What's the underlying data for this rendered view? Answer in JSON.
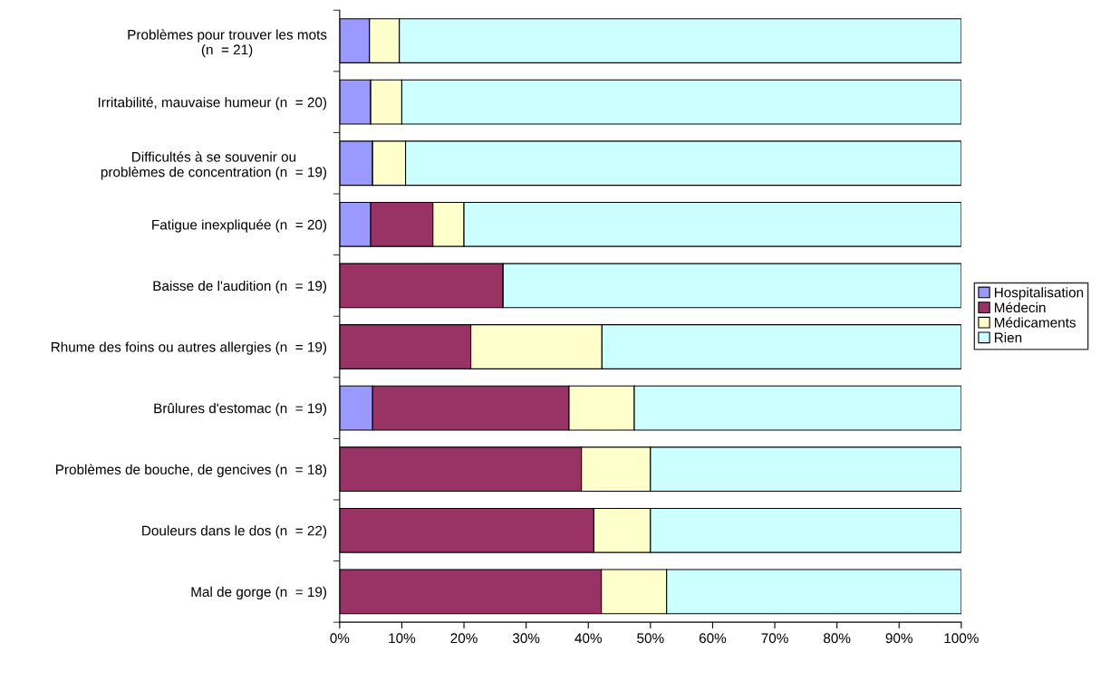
{
  "chart_data": {
    "type": "bar",
    "orientation": "horizontal",
    "stacked": true,
    "categories": [
      "Problèmes pour trouver les mots\n(n  = 21)",
      "Irritabilité, mauvaise humeur (n  = 20)",
      "Difficultés à se souvenir ou\nproblèmes de concentration (n  = 19)",
      "Fatigue inexpliquée (n  = 20)",
      "Baisse de l'audition (n  = 19)",
      "Rhume des foins ou autres allergies (n  = 19)",
      "Brûlures d'estomac (n  = 19)",
      "Problèmes de bouche, de gencives (n  = 18)",
      "Douleurs dans le dos (n  = 22)",
      "Mal de gorge (n  = 19)"
    ],
    "series": [
      {
        "name": "Hospitalisation",
        "color": "#9999ff",
        "values": [
          4.8,
          5,
          5.3,
          5,
          0,
          0,
          5.3,
          0,
          0,
          0
        ]
      },
      {
        "name": "Médecin",
        "color": "#993366",
        "values": [
          0,
          0,
          0,
          10,
          26.3,
          21.1,
          31.6,
          38.9,
          40.9,
          42.1
        ]
      },
      {
        "name": "Médicaments",
        "color": "#ffffcc",
        "values": [
          4.8,
          5,
          5.3,
          5,
          0,
          21.1,
          10.5,
          11.1,
          9.1,
          10.5
        ]
      },
      {
        "name": "Rien",
        "color": "#ccffff",
        "values": [
          90.4,
          90,
          89.4,
          80,
          73.7,
          57.8,
          52.6,
          50,
          50,
          47.4
        ]
      }
    ],
    "xlim": [
      0,
      100
    ],
    "xticks": [
      {
        "value": 0,
        "label": "0%"
      },
      {
        "value": 10,
        "label": "10%"
      },
      {
        "value": 20,
        "label": "20%"
      },
      {
        "value": 30,
        "label": "30%"
      },
      {
        "value": 40,
        "label": "40%"
      },
      {
        "value": 50,
        "label": "50%"
      },
      {
        "value": 60,
        "label": "60%"
      },
      {
        "value": 70,
        "label": "70%"
      },
      {
        "value": 80,
        "label": "80%"
      },
      {
        "value": 90,
        "label": "90%"
      },
      {
        "value": 100,
        "label": "100%"
      }
    ],
    "legend": "right",
    "grid": false
  }
}
